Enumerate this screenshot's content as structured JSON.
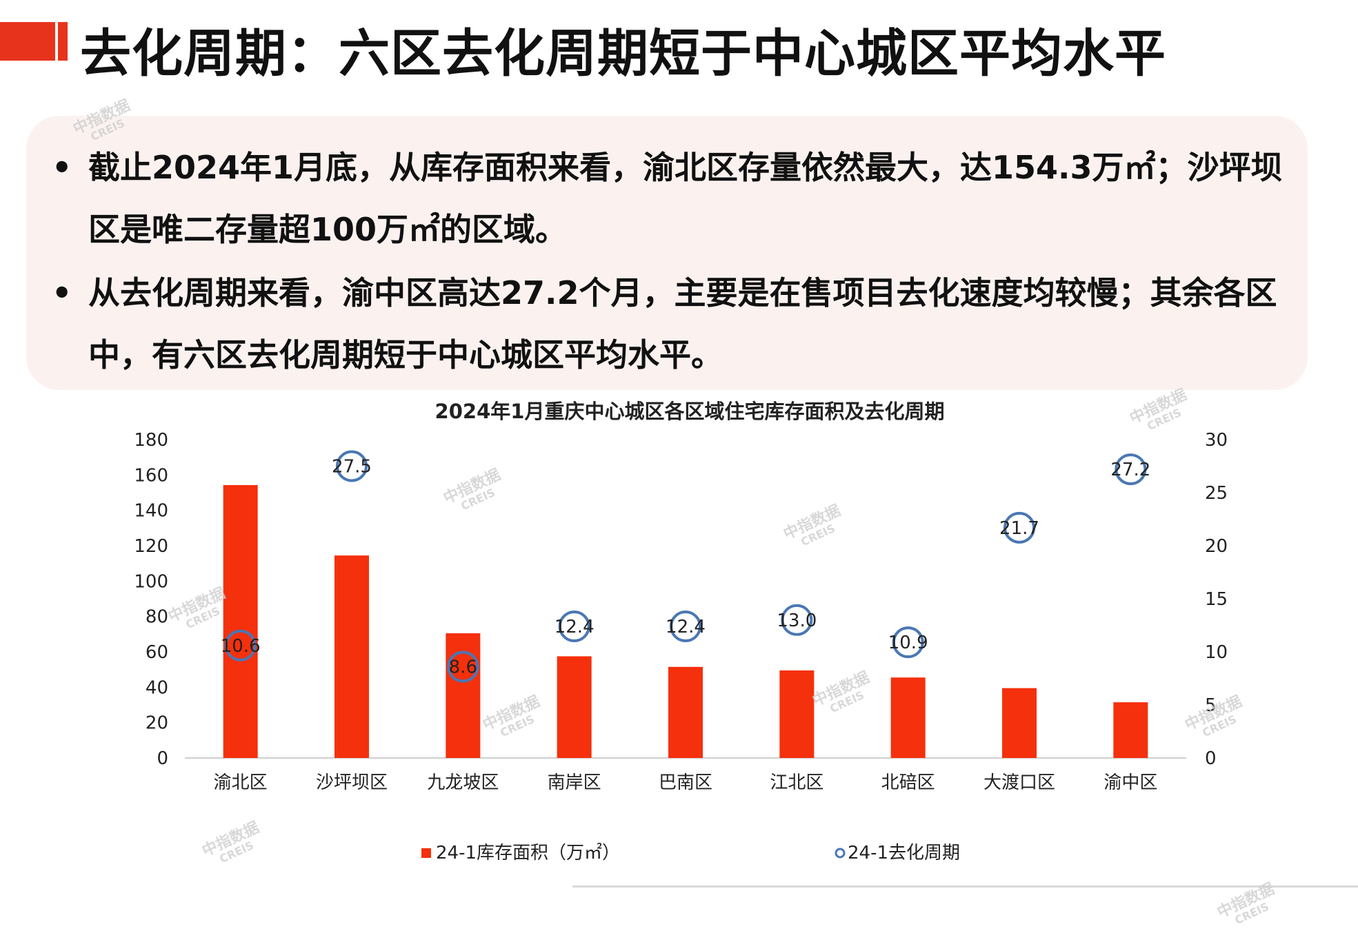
{
  "page": {
    "title": "去化周期：六区去化周期短于中心城区平均水平",
    "accent_color": "#e8331c"
  },
  "summary": {
    "bullet_symbol": "•",
    "bullets": [
      "截止2024年1月底，从库存面积来看，渝北区存量依然最大，达154.3万㎡；沙坪坝区是唯二存量超100万㎡的区域。",
      "从去化周期来看，渝中区高达27.2个月，主要是在售项目去化速度均较慢；其余各区中，有六区去化周期短于中心城区平均水平。"
    ]
  },
  "watermark": {
    "line1": "中指数据",
    "line2": "CREIS"
  },
  "chart_data": {
    "type": "bar",
    "title": "2024年1月重庆中心城区各区域住宅库存面积及去化周期",
    "categories": [
      "渝北区",
      "沙坪坝区",
      "九龙坡区",
      "南岸区",
      "巴南区",
      "江北区",
      "北碚区",
      "大渡口区",
      "渝中区"
    ],
    "series": [
      {
        "name": "24-1库存面积（万㎡）",
        "type": "bar",
        "axis": "left",
        "color": "#f5300c",
        "values": [
          154.3,
          114.5,
          70.5,
          57.5,
          51.5,
          49.5,
          45.5,
          39.5,
          31.5
        ]
      },
      {
        "name": "24-1去化周期",
        "type": "scatter",
        "axis": "right",
        "color": "#4a77b4",
        "values": [
          10.6,
          27.5,
          8.6,
          12.4,
          12.4,
          13.0,
          10.9,
          21.7,
          27.2
        ],
        "labels": [
          "10.6",
          "27.5",
          "8.6",
          "12.4",
          "12.4",
          "13.0",
          "10.9",
          "21.7",
          "27.2"
        ]
      }
    ],
    "ylim_left": [
      0,
      180
    ],
    "yticks_left": [
      "0",
      "20",
      "40",
      "60",
      "80",
      "100",
      "120",
      "140",
      "160",
      "180"
    ],
    "ylim_right": [
      0,
      30
    ],
    "yticks_right": [
      "0",
      "5",
      "10",
      "15",
      "20",
      "25",
      "30"
    ],
    "grid": false,
    "legend_position": "bottom"
  }
}
